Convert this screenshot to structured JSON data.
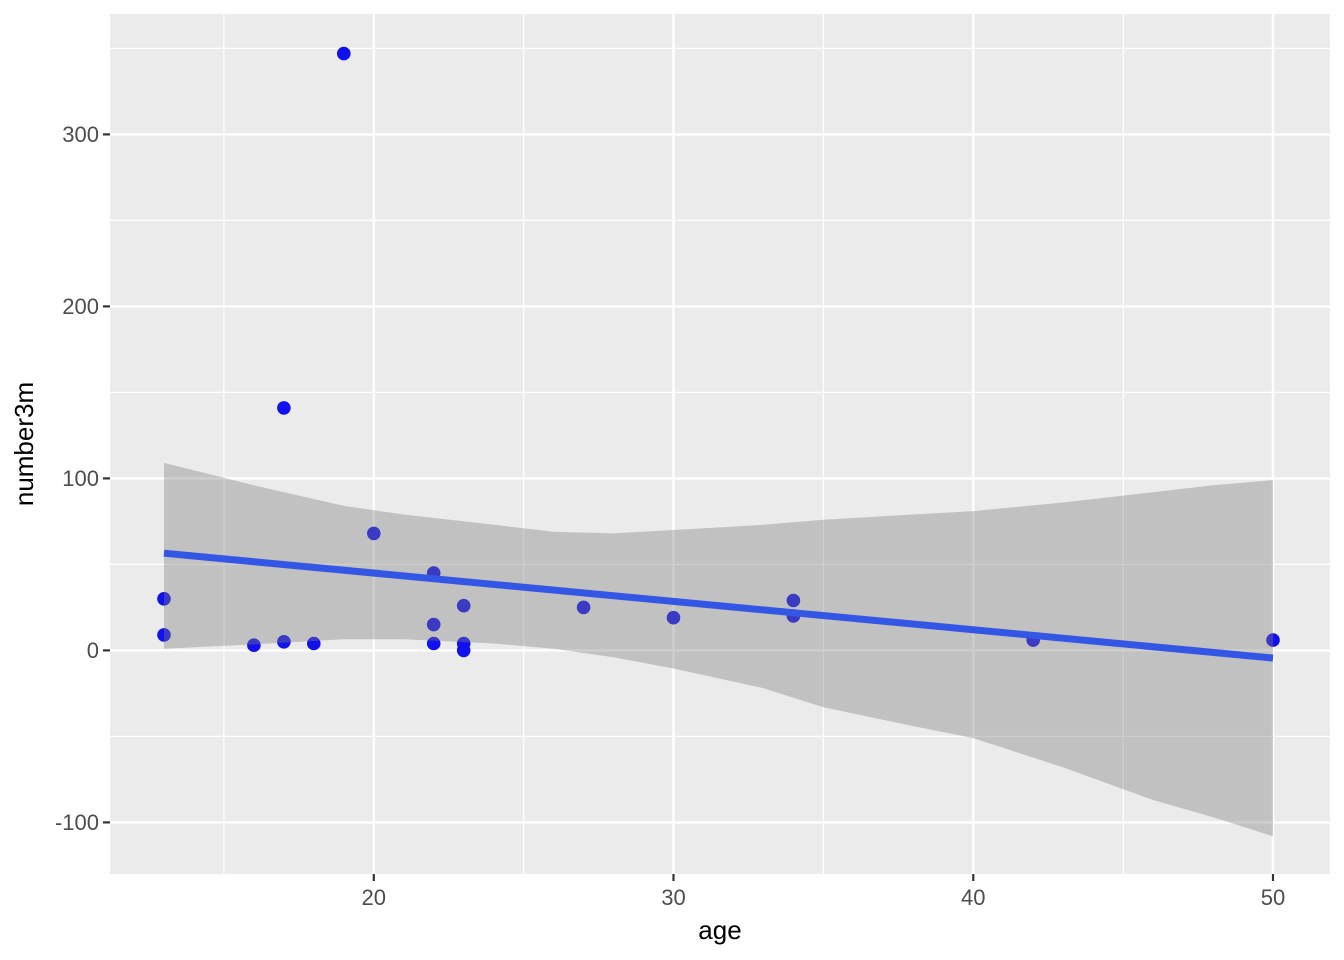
{
  "chart_data": {
    "type": "scatter",
    "title": "",
    "xlabel": "age",
    "ylabel": "number3m",
    "xlim": [
      11.2,
      51.9
    ],
    "ylim": [
      -130,
      370
    ],
    "x_ticks": [
      20,
      30,
      40,
      50
    ],
    "y_ticks": [
      -100,
      0,
      100,
      200,
      300
    ],
    "x_tick_labels": [
      "20",
      "30",
      "40",
      "50"
    ],
    "y_tick_labels": [
      "-100",
      "0",
      "100",
      "200",
      "300"
    ],
    "x_minor": [
      15,
      25,
      35,
      45
    ],
    "y_minor": [
      -50,
      50,
      150,
      250,
      350
    ],
    "grid": "on",
    "legend": "none",
    "points": [
      [
        13,
        30
      ],
      [
        13,
        9
      ],
      [
        16,
        3
      ],
      [
        17,
        141
      ],
      [
        17,
        5
      ],
      [
        18,
        4
      ],
      [
        19,
        347
      ],
      [
        20,
        68
      ],
      [
        22,
        45
      ],
      [
        22,
        15
      ],
      [
        22,
        4
      ],
      [
        23,
        26
      ],
      [
        23,
        4
      ],
      [
        23,
        0
      ],
      [
        27,
        25
      ],
      [
        30,
        19
      ],
      [
        34,
        29
      ],
      [
        34,
        20
      ],
      [
        42,
        6
      ],
      [
        50,
        6
      ]
    ],
    "smooth_line": {
      "x": [
        13,
        50
      ],
      "y": [
        56.5,
        -4.5
      ]
    },
    "ribbon": {
      "x": [
        13,
        16,
        19,
        21,
        24,
        26,
        28,
        30,
        33,
        35,
        38,
        40,
        43,
        46,
        48,
        50
      ],
      "upper": [
        109,
        96,
        84,
        79,
        73,
        69,
        68,
        70,
        73,
        76,
        79,
        81,
        86,
        92,
        96,
        99
      ],
      "lower": [
        1,
        3.5,
        6.5,
        6.5,
        4,
        1,
        -4,
        -10.5,
        -22,
        -33,
        -44,
        -51,
        -68,
        -87,
        -97,
        -108
      ]
    },
    "colors": {
      "panel_bg": "#EBEBEB",
      "grid_major": "#FFFFFF",
      "grid_minor": "#FFFFFF",
      "ribbon": "rgba(127,127,127,0.38)",
      "line": "#3356E5",
      "point": "#1111EE",
      "tick_mark": "#333333",
      "tick_label": "#4D4D4D",
      "axis_title": "#000000"
    }
  }
}
